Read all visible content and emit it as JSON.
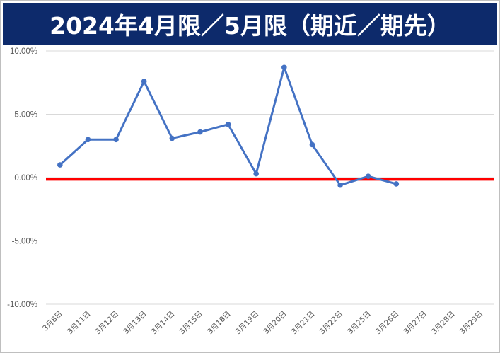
{
  "chart_data": {
    "type": "line",
    "title": "2024年4月限／5月限（期近／期先）",
    "xlabel": "",
    "ylabel": "",
    "categories": [
      "3月8日",
      "3月11日",
      "3月12日",
      "3月13日",
      "3月14日",
      "3月15日",
      "3月18日",
      "3月19日",
      "3月20日",
      "3月21日",
      "3月22日",
      "3月25日",
      "3月26日",
      "3月27日",
      "3月28日",
      "3月29日"
    ],
    "y_tick_labels": [
      "10.00%",
      "5.00%",
      "0.00%",
      "-5.00%",
      "-10.00%"
    ],
    "y_ticks": [
      10,
      5,
      0,
      -5,
      -10
    ],
    "ylim": [
      -10,
      10
    ],
    "series": [
      {
        "values": [
          1.0,
          3.0,
          3.0,
          7.6,
          3.1,
          3.6,
          4.2,
          0.3,
          8.7,
          2.6,
          -0.6,
          0.1,
          -0.5,
          null,
          null,
          null
        ],
        "color": "#4472c4"
      }
    ],
    "reference_line": {
      "value": -0.15,
      "color": "#ff0000"
    },
    "grid": true,
    "legend": "none"
  }
}
